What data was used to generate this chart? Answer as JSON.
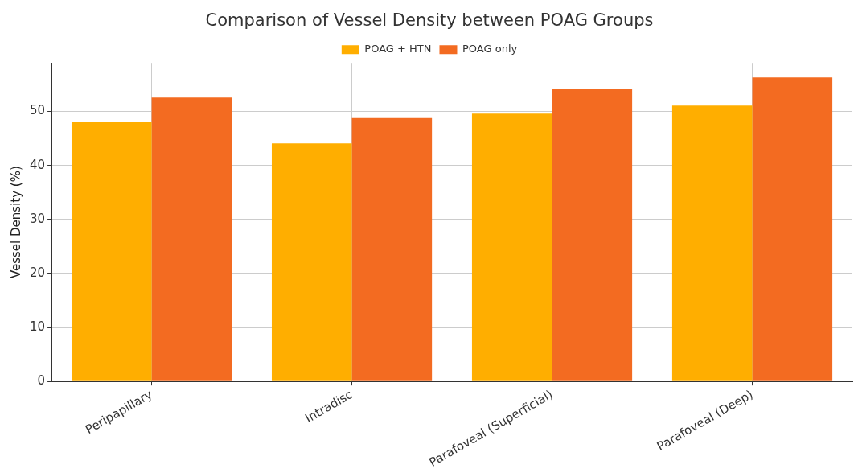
{
  "chart_data": {
    "type": "bar",
    "title": "Comparison of Vessel Density between POAG Groups",
    "ylabel": "Vessel Density (%)",
    "categories": [
      "Peripapillary",
      "Intradisc",
      "Parafoveal (Superficial)",
      "Parafoveal (Deep)"
    ],
    "series": [
      {
        "name": "POAG + HTN",
        "color": "#ffae00",
        "values": [
          48.0,
          44.1,
          49.6,
          51.1
        ]
      },
      {
        "name": "POAG only",
        "color": "#f36b21",
        "values": [
          52.6,
          48.8,
          54.1,
          56.3
        ]
      }
    ],
    "ylim": [
      0,
      59
    ],
    "yticks": [
      0,
      10,
      20,
      30,
      40,
      50
    ],
    "grid": true,
    "legend": "top"
  }
}
